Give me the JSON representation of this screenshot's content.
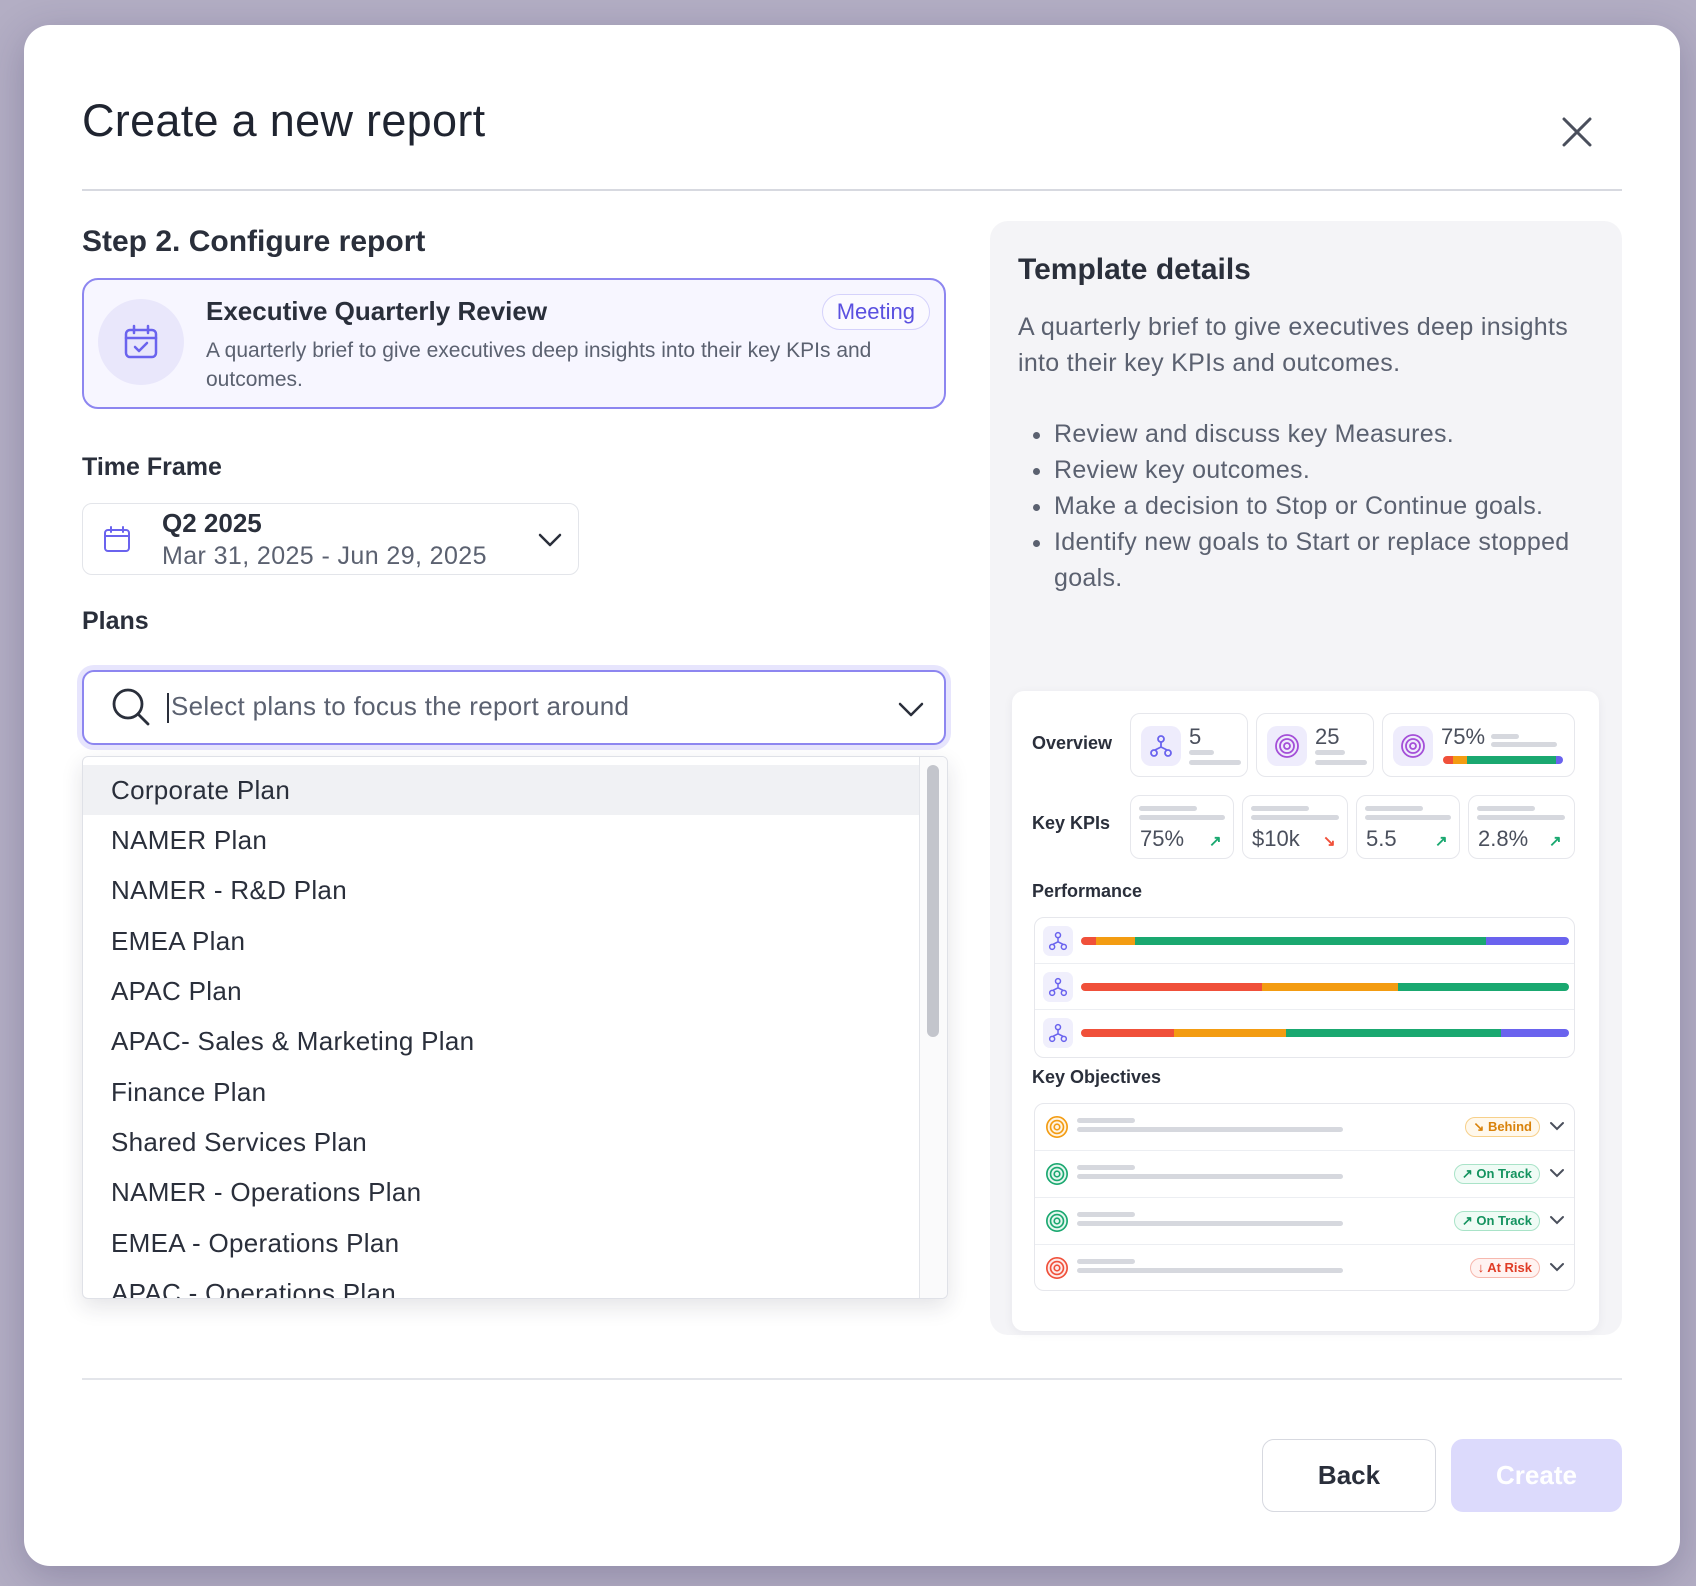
{
  "modal": {
    "title": "Create a new report"
  },
  "step": {
    "title": "Step 2. Configure report"
  },
  "template_card": {
    "name": "Executive Quarterly Review",
    "badge": "Meeting",
    "description": "A quarterly brief to give executives deep insights into their key KPIs and outcomes."
  },
  "time_frame": {
    "label": "Time Frame",
    "selected": "Q2 2025",
    "range": "Mar 31, 2025 - Jun 29, 2025"
  },
  "plans": {
    "label": "Plans",
    "placeholder": "Select plans to focus the report around",
    "options": [
      "Corporate Plan",
      "NAMER Plan",
      "NAMER - R&D Plan",
      "EMEA Plan",
      "APAC Plan",
      "APAC- Sales & Marketing Plan",
      "Finance Plan",
      "Shared Services Plan",
      "NAMER - Operations Plan",
      "EMEA - Operations Plan",
      "APAC - Operations Plan"
    ],
    "highlighted_index": 0
  },
  "details": {
    "title": "Template details",
    "description": "A quarterly brief to give executives deep insights into their key KPIs and outcomes.",
    "bullets": [
      "Review and discuss key Measures.",
      "Review key outcomes.",
      "Make a decision to Stop or Continue goals.",
      "Identify new goals to Start or replace stopped goals."
    ]
  },
  "preview": {
    "overview_label": "Overview",
    "overview_stats": [
      "5",
      "25",
      "75%"
    ],
    "kpis_label": "Key KPIs",
    "kpis": [
      {
        "value": "75%",
        "trend": "up"
      },
      {
        "value": "$10k",
        "trend": "down"
      },
      {
        "value": "5.5",
        "trend": "up"
      },
      {
        "value": "2.8%",
        "trend": "up"
      }
    ],
    "performance_label": "Performance",
    "objectives_label": "Key Objectives",
    "objectives": [
      {
        "status": "Behind",
        "color": "#f39c12"
      },
      {
        "status": "On Track",
        "color": "#1aa870"
      },
      {
        "status": "On Track",
        "color": "#1aa870"
      },
      {
        "status": "At Risk",
        "color": "#f0503a"
      }
    ]
  },
  "footer": {
    "back_label": "Back",
    "create_label": "Create"
  },
  "colors": {
    "accent": "#5a50e0",
    "red": "#f0503a",
    "orange": "#f39c12",
    "green": "#1aa870",
    "purple": "#6a63ee"
  }
}
